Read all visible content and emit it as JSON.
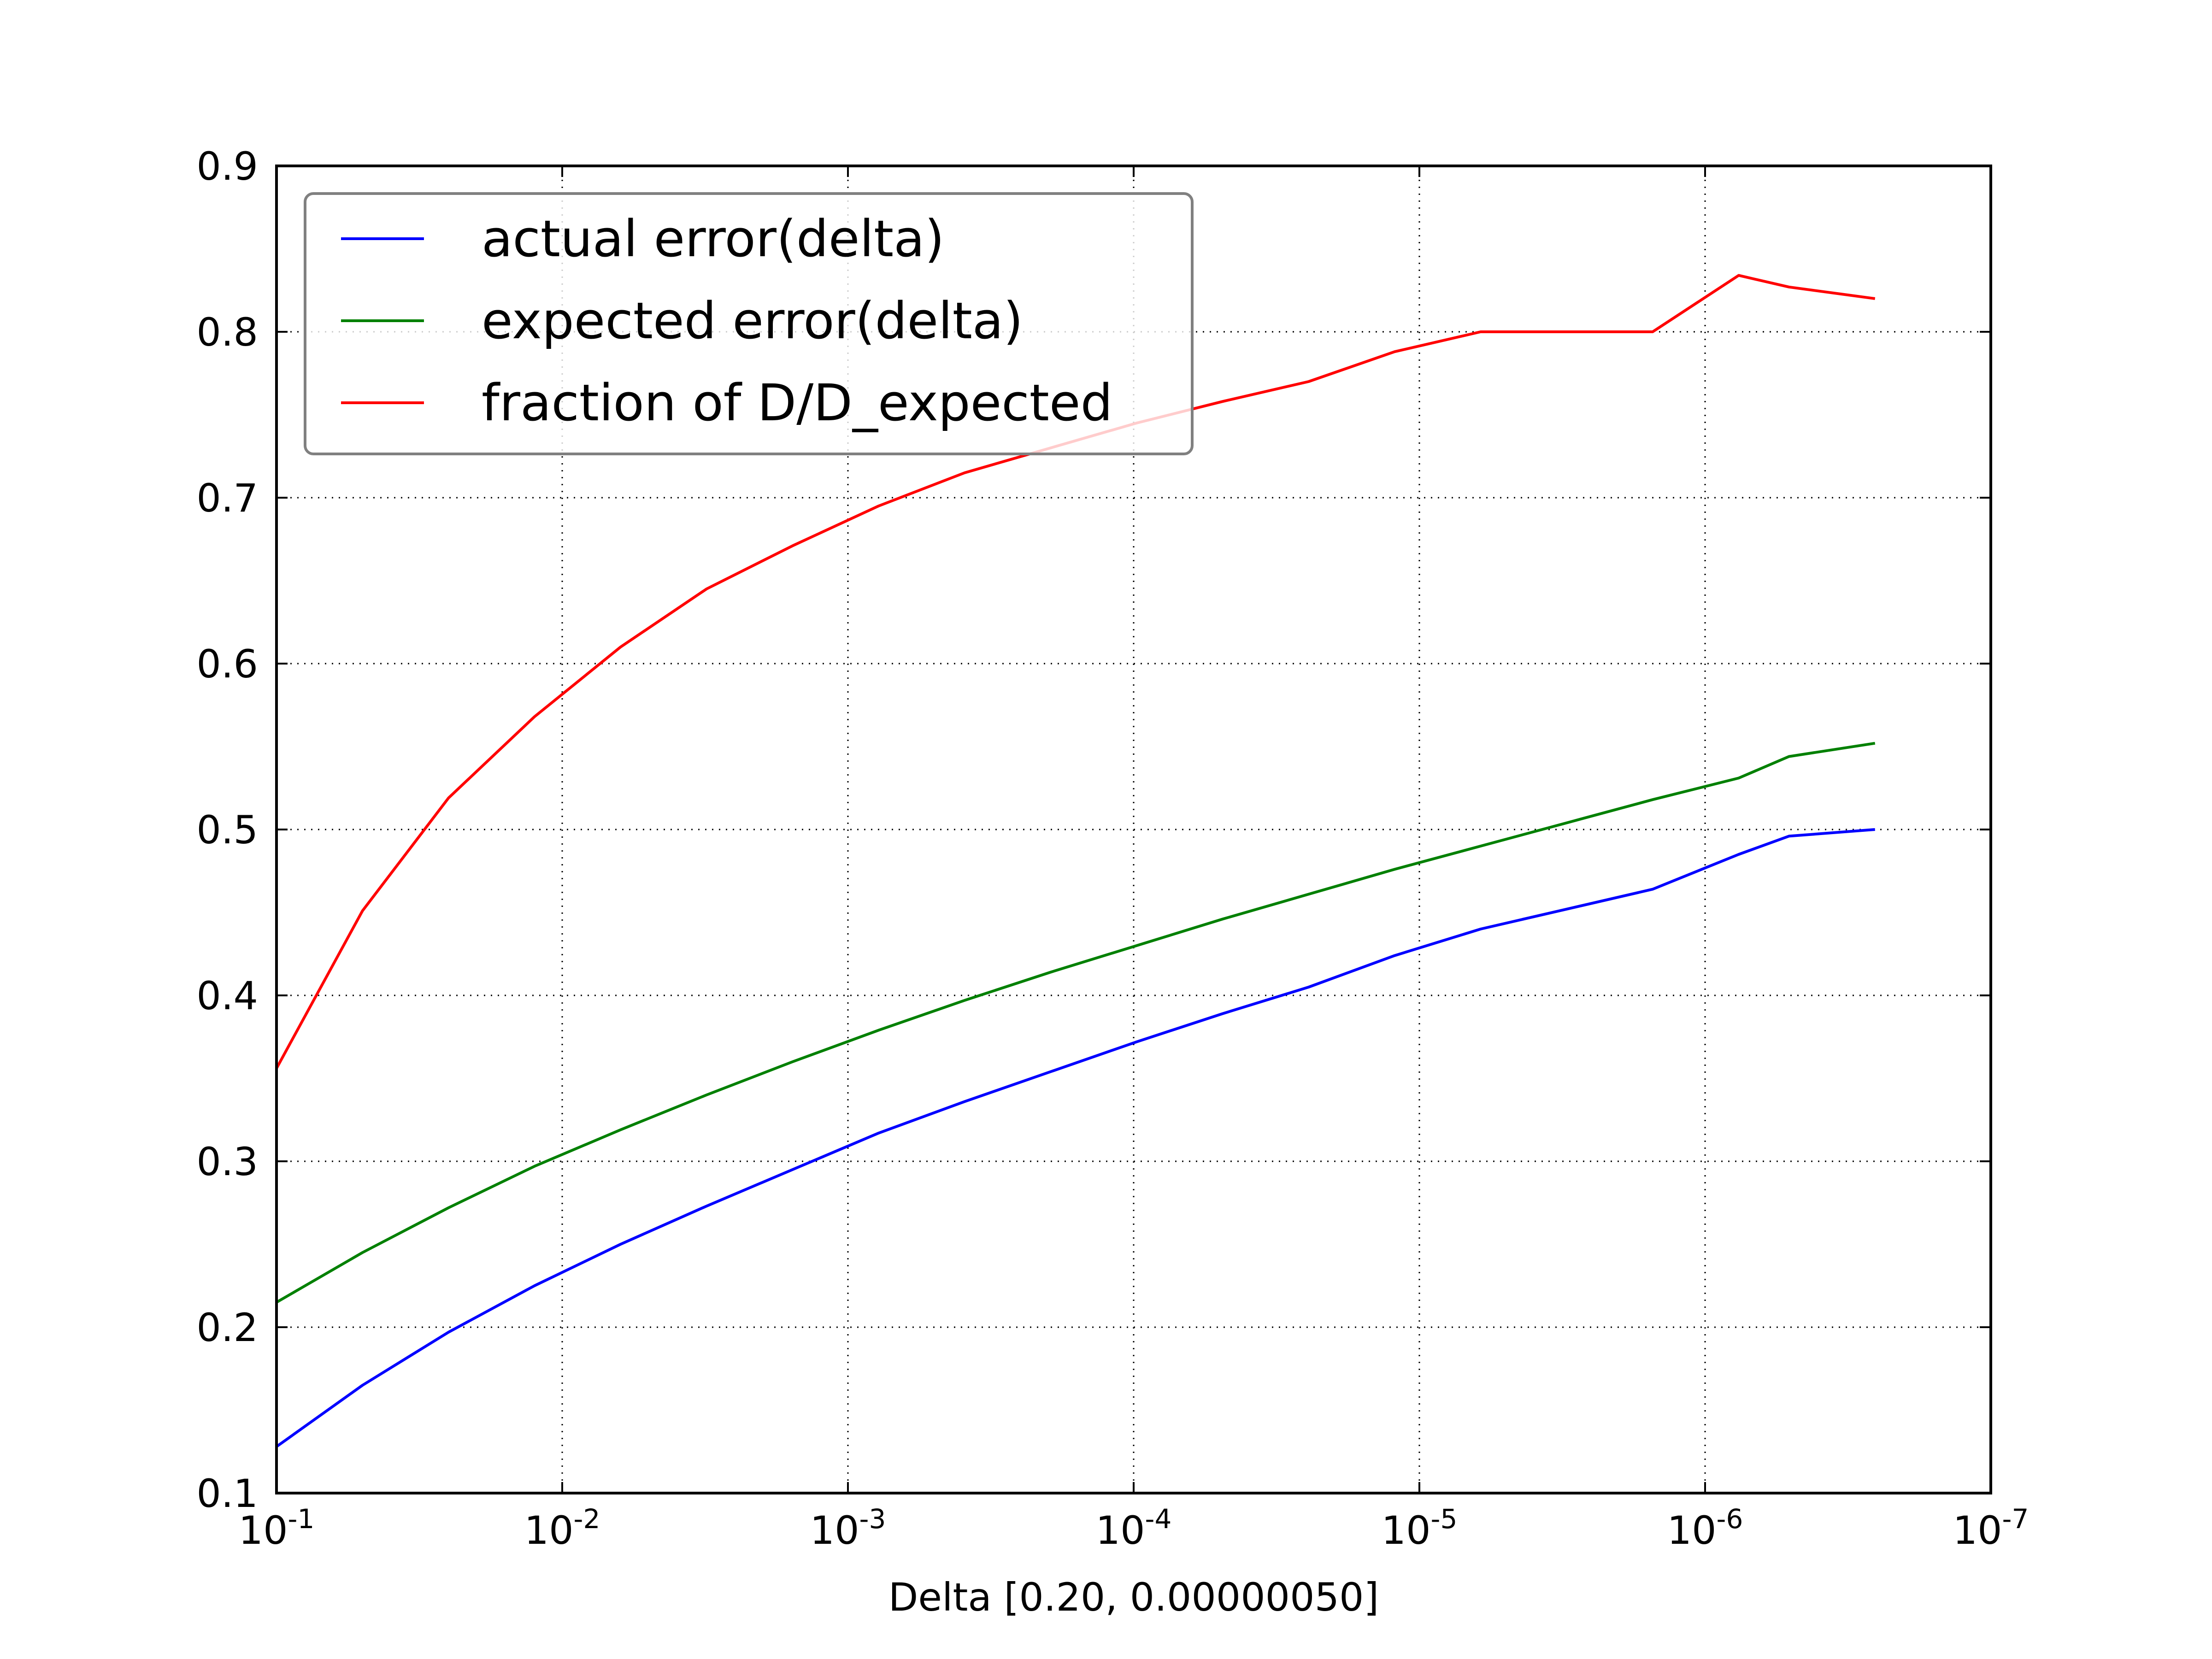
{
  "chart_data": {
    "type": "line",
    "title": "",
    "xlabel": "Delta [0.20, 0.00000050]",
    "ylabel": "",
    "x_scale": "log",
    "x_reversed": true,
    "xlim": [
      0.1,
      1e-07
    ],
    "ylim": [
      0.1,
      0.9
    ],
    "grid": true,
    "legend_position": "top-left",
    "x_ticks": [
      {
        "value": 0.1,
        "base": "10",
        "exponent": "-1"
      },
      {
        "value": 0.01,
        "base": "10",
        "exponent": "-2"
      },
      {
        "value": 0.001,
        "base": "10",
        "exponent": "-3"
      },
      {
        "value": 0.0001,
        "base": "10",
        "exponent": "-4"
      },
      {
        "value": 1e-05,
        "base": "10",
        "exponent": "-5"
      },
      {
        "value": 1e-06,
        "base": "10",
        "exponent": "-6"
      },
      {
        "value": 1e-07,
        "base": "10",
        "exponent": "-7"
      }
    ],
    "y_ticks": [
      {
        "value": 0.1,
        "label": "0.1"
      },
      {
        "value": 0.2,
        "label": "0.2"
      },
      {
        "value": 0.3,
        "label": "0.3"
      },
      {
        "value": 0.4,
        "label": "0.4"
      },
      {
        "value": 0.5,
        "label": "0.5"
      },
      {
        "value": 0.6,
        "label": "0.6"
      },
      {
        "value": 0.7,
        "label": "0.7"
      },
      {
        "value": 0.8,
        "label": "0.8"
      },
      {
        "value": 0.9,
        "label": "0.9"
      }
    ],
    "x": [
      0.1,
      0.05,
      0.025,
      0.0125,
      0.00625,
      0.003125,
      0.0015625,
      0.00078125,
      0.000390625,
      0.0001953125,
      9.76563e-05,
      4.88281e-05,
      2.44141e-05,
      1.2207e-05,
      6.1035e-06,
      3.0518e-06,
      1.5259e-06,
      7.629e-07,
      5.086e-07,
      2.543e-07
    ],
    "series": [
      {
        "name": "actual error(delta)",
        "color": "#0000ff",
        "values": [
          0.128,
          0.165,
          0.197,
          0.225,
          0.25,
          0.273,
          0.295,
          0.317,
          0.336,
          0.354,
          0.372,
          0.389,
          0.405,
          0.424,
          0.44,
          0.452,
          0.464,
          0.485,
          0.496,
          0.5
        ]
      },
      {
        "name": "expected error(delta)",
        "color": "#008000",
        "values": [
          0.215,
          0.245,
          0.272,
          0.297,
          0.319,
          0.34,
          0.36,
          0.379,
          0.397,
          0.414,
          0.43,
          0.446,
          0.461,
          0.476,
          0.49,
          0.504,
          0.518,
          0.531,
          0.544,
          0.552
        ]
      },
      {
        "name": "fraction of D/D_expected",
        "color": "#ff0000",
        "values": [
          0.356,
          0.451,
          0.519,
          0.568,
          0.61,
          0.645,
          0.671,
          0.695,
          0.715,
          0.73,
          0.745,
          0.758,
          0.77,
          0.788,
          0.8,
          0.8,
          0.8,
          0.834,
          0.827,
          0.82
        ]
      }
    ]
  }
}
